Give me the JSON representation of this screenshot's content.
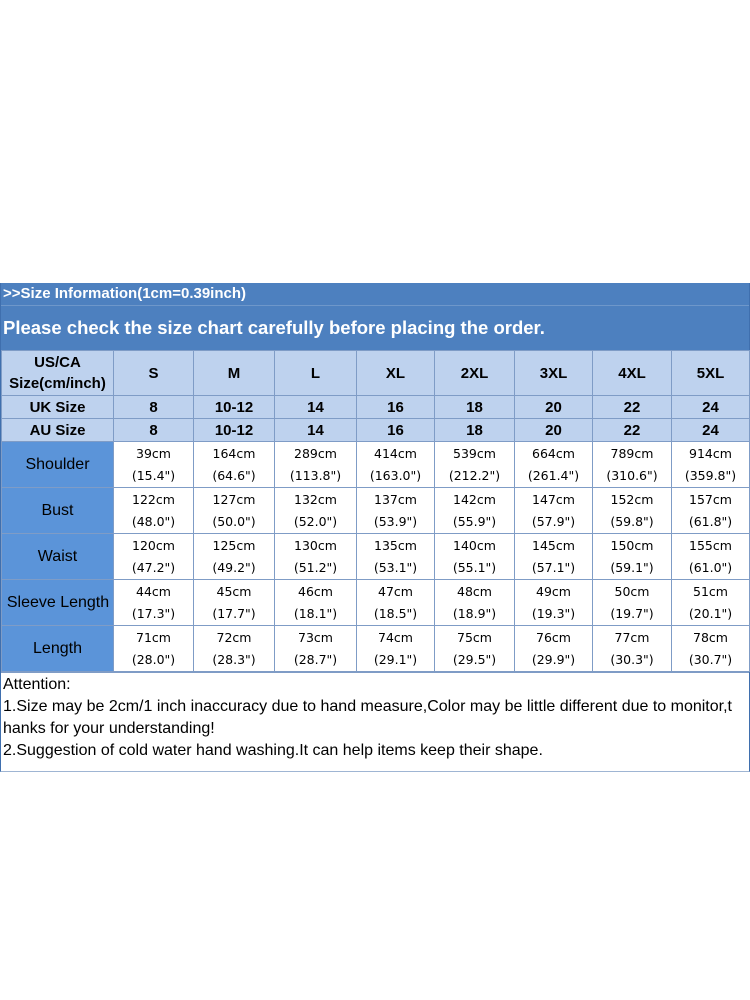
{
  "banner": {
    "info": ">>Size Information(1cm=0.39inch)",
    "notice": "Please check the size chart carefully before placing the order."
  },
  "table": {
    "us_label_line1": "US/CA",
    "us_label_line2": "Size(cm/inch)",
    "sizes": [
      "S",
      "M",
      "L",
      "XL",
      "2XL",
      "3XL",
      "4XL",
      "5XL"
    ],
    "uk": {
      "label": "UK Size",
      "values": [
        "8",
        "10-12",
        "14",
        "16",
        "18",
        "20",
        "22",
        "24"
      ]
    },
    "au": {
      "label": "AU Size",
      "values": [
        "8",
        "10-12",
        "14",
        "16",
        "18",
        "20",
        "22",
        "24"
      ]
    },
    "rows": [
      {
        "label": "Shoulder",
        "cm": [
          "39cm",
          "164cm",
          "289cm",
          "414cm",
          "539cm",
          "664cm",
          "789cm",
          "914cm"
        ],
        "inch": [
          "(15.4\")",
          "(64.6\")",
          "(113.8\")",
          "(163.0\")",
          "(212.2\")",
          "(261.4\")",
          "(310.6\")",
          "(359.8\")"
        ]
      },
      {
        "label": "Bust",
        "cm": [
          "122cm",
          "127cm",
          "132cm",
          "137cm",
          "142cm",
          "147cm",
          "152cm",
          "157cm"
        ],
        "inch": [
          "(48.0\")",
          "(50.0\")",
          "(52.0\")",
          "(53.9\")",
          "(55.9\")",
          "(57.9\")",
          "(59.8\")",
          "(61.8\")"
        ]
      },
      {
        "label": "Waist",
        "cm": [
          "120cm",
          "125cm",
          "130cm",
          "135cm",
          "140cm",
          "145cm",
          "150cm",
          "155cm"
        ],
        "inch": [
          "(47.2\")",
          "(49.2\")",
          "(51.2\")",
          "(53.1\")",
          "(55.1\")",
          "(57.1\")",
          "(59.1\")",
          "(61.0\")"
        ]
      },
      {
        "label": "Sleeve Length",
        "cm": [
          "44cm",
          "45cm",
          "46cm",
          "47cm",
          "48cm",
          "49cm",
          "50cm",
          "51cm"
        ],
        "inch": [
          "(17.3\")",
          "(17.7\")",
          "(18.1\")",
          "(18.5\")",
          "(18.9\")",
          "(19.3\")",
          "(19.7\")",
          "(20.1\")"
        ]
      },
      {
        "label": "Length",
        "cm": [
          "71cm",
          "72cm",
          "73cm",
          "74cm",
          "75cm",
          "76cm",
          "77cm",
          "78cm"
        ],
        "inch": [
          "(28.0\")",
          "(28.3\")",
          "(28.7\")",
          "(29.1\")",
          "(29.5\")",
          "(29.9\")",
          "(30.3\")",
          "(30.7\")"
        ]
      }
    ]
  },
  "attention": {
    "title": "Attention:",
    "line1": "1.Size may be 2cm/1 inch inaccuracy due to hand measure,Color may be little different due to monitor,t",
    "line1_cont": "hanks for your understanding!",
    "line2": "2.Suggestion of cold water hand washing.It can help items keep their shape."
  }
}
